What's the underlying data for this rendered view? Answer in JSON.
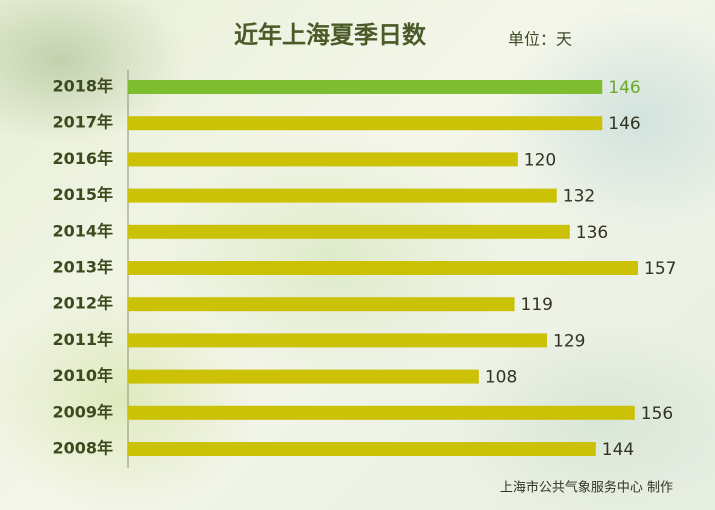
{
  "chart_data": {
    "type": "barh",
    "title": "近年上海夏季日数",
    "unit": "单位：天",
    "source": "上海市公共气象服务中心 制作",
    "categories": [
      "2018年",
      "2017年",
      "2016年",
      "2015年",
      "2014年",
      "2013年",
      "2012年",
      "2011年",
      "2010年",
      "2009年",
      "2008年"
    ],
    "values": [
      146,
      146,
      120,
      132,
      136,
      157,
      119,
      129,
      108,
      156,
      144
    ],
    "colors": [
      "#7dbd2f",
      "#cbc106",
      "#cbc106",
      "#cbc106",
      "#cbc106",
      "#cbc106",
      "#cbc106",
      "#cbc106",
      "#cbc106",
      "#cbc106",
      "#cbc106"
    ],
    "value_label_colors": [
      "#6aa829",
      "#333322",
      "#333322",
      "#333322",
      "#333322",
      "#333322",
      "#333322",
      "#333322",
      "#333322",
      "#333322",
      "#333322"
    ]
  }
}
